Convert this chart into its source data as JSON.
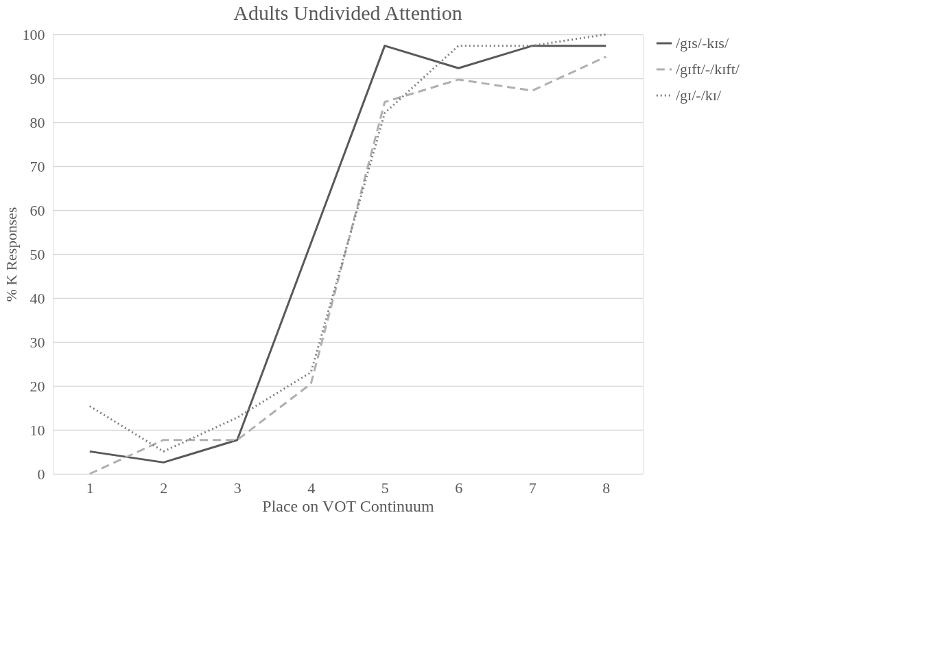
{
  "chart_data": {
    "type": "line",
    "title": "Adults Undivided Attention",
    "xlabel": "Place on VOT Continuum",
    "ylabel": "% K Responses",
    "categories": [
      "1",
      "2",
      "3",
      "4",
      "5",
      "6",
      "7",
      "8"
    ],
    "series": [
      {
        "name": "/gɪs/-kɪs/",
        "color": "#595959",
        "line_style": "solid",
        "values": [
          5.1,
          2.6,
          7.7,
          52.5,
          97.4,
          92.3,
          97.4,
          97.4
        ]
      },
      {
        "name": "/gɪft/-/kɪft/",
        "color": "#b0b0b0",
        "line_style": "dashed",
        "values": [
          0,
          7.7,
          7.7,
          20.5,
          84.6,
          89.7,
          87.2,
          94.9
        ]
      },
      {
        "name": "/gɪ/-/kɪ/",
        "color": "#7f7f7f",
        "line_style": "dotted",
        "values": [
          15.4,
          5.1,
          12.8,
          23.1,
          82.1,
          97.4,
          97.4,
          100
        ]
      }
    ],
    "ylim": [
      0,
      100
    ],
    "yticks": [
      0,
      10,
      20,
      30,
      40,
      50,
      60,
      70,
      80,
      90,
      100
    ],
    "grid": "y",
    "legend": "right",
    "marker": "none"
  }
}
